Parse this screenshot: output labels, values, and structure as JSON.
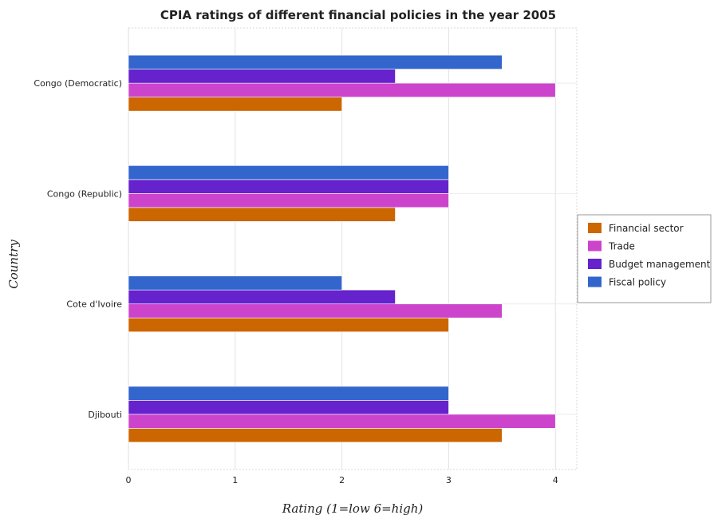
{
  "chart_data": {
    "type": "bar",
    "orientation": "horizontal",
    "title": "CPIA ratings of different financial policies in the year 2005",
    "xlabel": "Rating (1=low 6=high)",
    "ylabel": "Country",
    "xlim": [
      0,
      4.2
    ],
    "xticks": [
      "0",
      "1",
      "2",
      "3",
      "4"
    ],
    "grid": true,
    "legend_position": "right",
    "categories": [
      "Congo (Democratic)",
      "Congo (Republic)",
      "Cote d'Ivoire",
      "Djibouti"
    ],
    "series": [
      {
        "name": "Financial sector",
        "color": "#cc6600",
        "values": [
          2.0,
          2.5,
          3.0,
          3.5
        ]
      },
      {
        "name": "Trade",
        "color": "#cc44cc",
        "values": [
          4.0,
          3.0,
          3.5,
          4.0
        ]
      },
      {
        "name": "Budget management",
        "color": "#6622cc",
        "values": [
          2.5,
          3.0,
          2.5,
          3.0
        ]
      },
      {
        "name": "Fiscal policy",
        "color": "#3366cc",
        "values": [
          3.5,
          3.0,
          2.0,
          3.0
        ]
      }
    ]
  }
}
